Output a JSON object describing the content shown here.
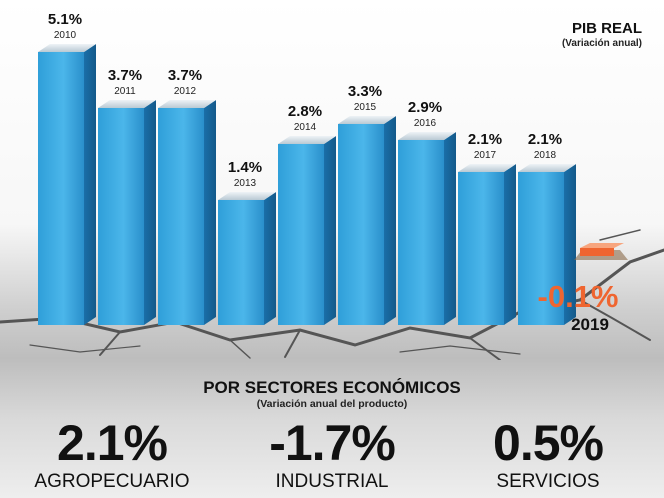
{
  "chart_data": {
    "type": "bar",
    "title": "PIB REAL",
    "subtitle": "(Variación anual)",
    "categories": [
      "2010",
      "2011",
      "2012",
      "2013",
      "2014",
      "2015",
      "2016",
      "2017",
      "2018",
      "2019"
    ],
    "values": [
      5.1,
      3.7,
      3.7,
      1.4,
      2.8,
      3.3,
      2.9,
      2.1,
      2.1,
      -0.1
    ],
    "value_labels": [
      "5.1%",
      "3.7%",
      "3.7%",
      "1.4%",
      "2.8%",
      "3.3%",
      "2.9%",
      "2.1%",
      "2.1%",
      "-0.1%"
    ],
    "ylim": [
      -0.1,
      5.1
    ],
    "grid": false,
    "colors": {
      "bar": "#35a6de",
      "negative": "#ef6530"
    }
  },
  "sectors": {
    "title": "POR SECTORES ECONÓMICOS",
    "subtitle": "(Variación anual del producto)",
    "items": [
      {
        "value": "2.1%",
        "label": "AGROPECUARIO"
      },
      {
        "value": "-1.7%",
        "label": "INDUSTRIAL"
      },
      {
        "value": "0.5%",
        "label": "SERVICIOS"
      }
    ]
  }
}
